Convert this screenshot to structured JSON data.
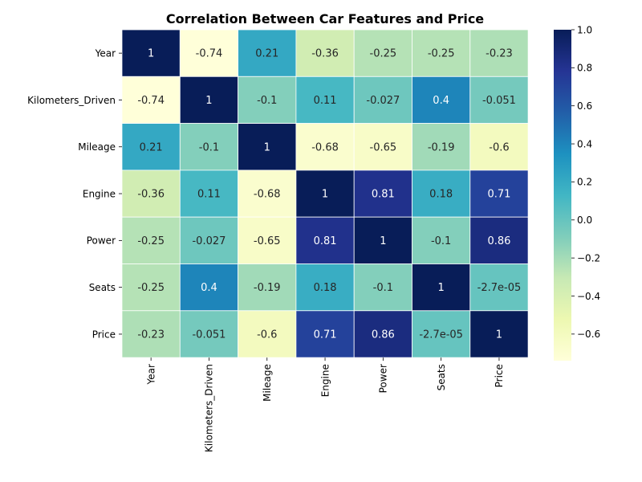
{
  "chart_data": {
    "type": "heatmap",
    "title": "Correlation Between Car Features and Price",
    "row_labels": [
      "Year",
      "Kilometers_Driven",
      "Mileage",
      "Engine",
      "Power",
      "Seats",
      "Price"
    ],
    "col_labels": [
      "Year",
      "Kilometers_Driven",
      "Mileage",
      "Engine",
      "Power",
      "Seats",
      "Price"
    ],
    "values": [
      [
        1,
        -0.74,
        0.21,
        -0.36,
        -0.25,
        -0.25,
        -0.23
      ],
      [
        -0.74,
        1,
        -0.1,
        0.11,
        -0.027,
        0.4,
        -0.051
      ],
      [
        0.21,
        -0.1,
        1,
        -0.68,
        -0.65,
        -0.19,
        -0.6
      ],
      [
        -0.36,
        0.11,
        -0.68,
        1,
        0.81,
        0.18,
        0.71
      ],
      [
        -0.25,
        -0.027,
        -0.65,
        0.81,
        1,
        -0.1,
        0.86
      ],
      [
        -0.25,
        0.4,
        -0.19,
        0.18,
        -0.1,
        1,
        -2.7e-05
      ],
      [
        -0.23,
        -0.051,
        -0.6,
        0.71,
        0.86,
        -2.7e-05,
        1
      ]
    ],
    "cell_labels": [
      [
        "1",
        "-0.74",
        "0.21",
        "-0.36",
        "-0.25",
        "-0.25",
        "-0.23"
      ],
      [
        "-0.74",
        "1",
        "-0.1",
        "0.11",
        "-0.027",
        "0.4",
        "-0.051"
      ],
      [
        "0.21",
        "-0.1",
        "1",
        "-0.68",
        "-0.65",
        "-0.19",
        "-0.6"
      ],
      [
        "-0.36",
        "0.11",
        "-0.68",
        "1",
        "0.81",
        "0.18",
        "0.71"
      ],
      [
        "-0.25",
        "-0.027",
        "-0.65",
        "0.81",
        "1",
        "-0.1",
        "0.86"
      ],
      [
        "-0.25",
        "0.4",
        "-0.19",
        "0.18",
        "-0.1",
        "1",
        "-2.7e-05"
      ],
      [
        "-0.23",
        "-0.051",
        "-0.6",
        "0.71",
        "0.86",
        "-2.7e-05",
        "1"
      ]
    ],
    "colormap": "YlGnBu",
    "colorbar": {
      "vmin": -0.74,
      "vmax": 1,
      "ticks": [
        1.0,
        0.8,
        0.6,
        0.4,
        0.2,
        0.0,
        -0.2,
        -0.4,
        -0.6
      ],
      "tick_labels": [
        "1.0",
        "0.8",
        "0.6",
        "0.4",
        "0.2",
        "0.0",
        "−0.2",
        "−0.4",
        "−0.6"
      ]
    }
  }
}
